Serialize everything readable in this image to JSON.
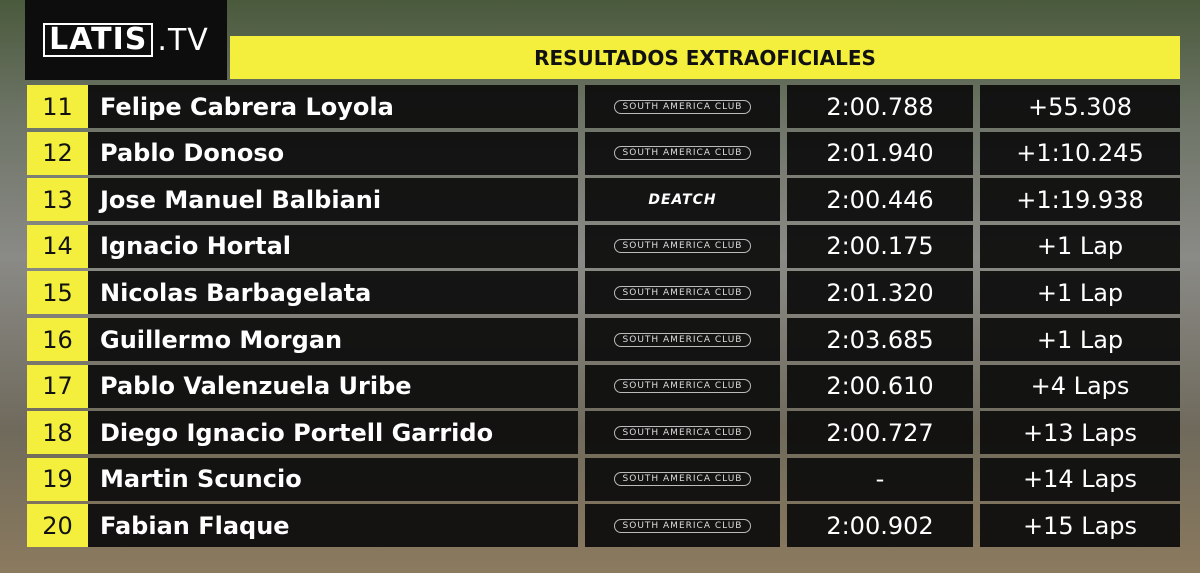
{
  "header": {
    "logo": "LATIS",
    "logo_suffix": ".TV",
    "title": "RESULTADOS EXTRAOFICIALES"
  },
  "table": {
    "rows": [
      [
        "11",
        "Felipe Cabrera Loyola",
        "SOUTH AMERICA CLUB",
        "2:00.788",
        "+55.308"
      ],
      [
        "12",
        "Pablo Donoso",
        "SOUTH AMERICA CLUB",
        "2:01.940",
        "+1:10.245"
      ],
      [
        "13",
        "Jose Manuel Balbiani",
        "DEATCH",
        "2:00.446",
        "+1:19.938"
      ],
      [
        "14",
        "Ignacio Hortal",
        "SOUTH AMERICA CLUB",
        "2:00.175",
        "+1 Lap"
      ],
      [
        "15",
        "Nicolas Barbagelata",
        "SOUTH AMERICA CLUB",
        "2:01.320",
        "+1 Lap"
      ],
      [
        "16",
        "Guillermo Morgan",
        "SOUTH AMERICA CLUB",
        "2:03.685",
        "+1 Lap"
      ],
      [
        "17",
        "Pablo Valenzuela Uribe",
        "SOUTH AMERICA CLUB",
        "2:00.610",
        "+4 Laps"
      ],
      [
        "18",
        "Diego Ignacio Portell Garrido",
        "SOUTH AMERICA CLUB",
        "2:00.727",
        "+13 Laps"
      ],
      [
        "19",
        "Martin Scuncio",
        "SOUTH AMERICA CLUB",
        "-",
        "+14 Laps"
      ],
      [
        "20",
        "Fabian Flaque",
        "SOUTH AMERICA CLUB",
        "2:00.902",
        "+15 Laps"
      ]
    ]
  }
}
